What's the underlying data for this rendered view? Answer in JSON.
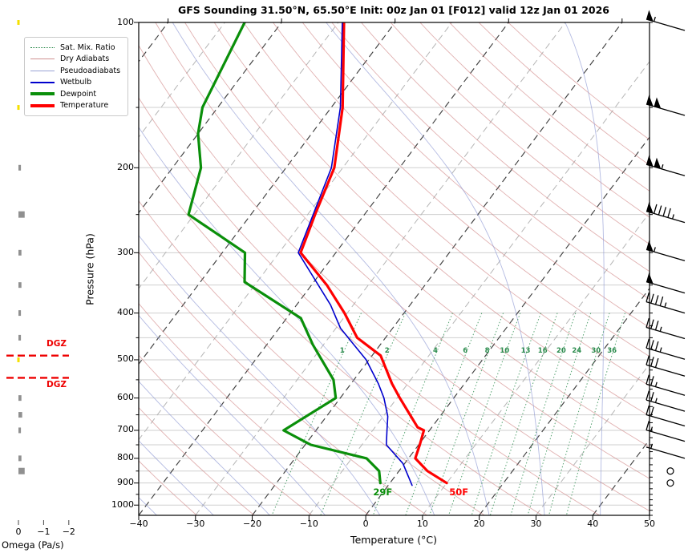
{
  "title": "GFS Sounding 31.50°N, 65.50°E Init: 00z Jan 01 [F012] valid 12z Jan 01 2026",
  "axes": {
    "pressure": {
      "label": "Pressure (hPa)",
      "ticks": [
        "100",
        "200",
        "300",
        "400",
        "500",
        "600",
        "700",
        "800",
        "900",
        "1000"
      ],
      "tick_values": [
        100,
        200,
        300,
        400,
        500,
        600,
        700,
        800,
        900,
        1000
      ]
    },
    "temperature": {
      "label": "Temperature (°C)",
      "ticks": [
        "−40",
        "−30",
        "−20",
        "−10",
        "0",
        "10",
        "20",
        "30",
        "40",
        "50"
      ],
      "tick_values": [
        -40,
        -30,
        -20,
        -10,
        0,
        10,
        20,
        30,
        40,
        50
      ]
    },
    "omega": {
      "label": "Omega (Pa/s)",
      "ticks": [
        "0",
        "−1",
        "−2"
      ],
      "tick_values": [
        0,
        -1,
        -2
      ]
    }
  },
  "legend": [
    {
      "label": "Sat. Mix. Ratio",
      "color": "#1e8240",
      "style": "dotted",
      "weight": 1.5
    },
    {
      "label": "Dry Adiabats",
      "color": "#cf8f8f",
      "style": "solid",
      "weight": 1.5
    },
    {
      "label": "Pseudoadiabats",
      "color": "#98a2d4",
      "style": "solid",
      "weight": 1.5
    },
    {
      "label": "Wetbulb",
      "color": "#0000cd",
      "style": "solid",
      "weight": 2
    },
    {
      "label": "Dewpoint",
      "color": "#0a8f0a",
      "style": "solid",
      "weight": 4
    },
    {
      "label": "Temperature",
      "color": "#ff0000",
      "style": "solid",
      "weight": 4
    }
  ],
  "colors": {
    "temperature": "#ff0000",
    "dewpoint": "#0a8f0a",
    "wetbulb": "#0000cd",
    "isotherm_major": "#404040",
    "isotherm_minor": "#b5b5b5",
    "dry_adiabat": "rgba(205,125,125,0.6)",
    "pseudoadiabat": "rgba(140,150,210,0.65)",
    "mixing_ratio": "#2c8c4e",
    "gridline": "#cfcfcf",
    "dgz": "#ee0000",
    "omega_bar": "#909090",
    "omega_highlight": "#f5e000",
    "barb": "#000000"
  },
  "chart_data": {
    "type": "skewt-sounding",
    "pressure_unit": "hPa",
    "temperature_unit": "°C",
    "pressure_range": [
      100,
      1050
    ],
    "temperature_range": [
      -40,
      50
    ],
    "series": [
      {
        "name": "Temperature",
        "points": [
          [
            100,
            -69
          ],
          [
            150,
            -58
          ],
          [
            200,
            -51.5
          ],
          [
            250,
            -48.7
          ],
          [
            300,
            -46.2
          ],
          [
            350,
            -37.3
          ],
          [
            400,
            -30.5
          ],
          [
            450,
            -25
          ],
          [
            490,
            -18.5
          ],
          [
            560,
            -12.8
          ],
          [
            600,
            -9.5
          ],
          [
            690,
            -2.5
          ],
          [
            700,
            -1
          ],
          [
            750,
            0.2
          ],
          [
            800,
            1.2
          ],
          [
            850,
            5
          ],
          [
            900,
            10
          ]
        ]
      },
      {
        "name": "Dewpoint",
        "points": [
          [
            100,
            -86.5
          ],
          [
            150,
            -82.7
          ],
          [
            170,
            -80
          ],
          [
            200,
            -75
          ],
          [
            250,
            -71
          ],
          [
            300,
            -56
          ],
          [
            345,
            -52.2
          ],
          [
            410,
            -37.5
          ],
          [
            465,
            -31.9
          ],
          [
            550,
            -23.6
          ],
          [
            600,
            -20.8
          ],
          [
            700,
            -25.7
          ],
          [
            750,
            -19
          ],
          [
            800,
            -7.4
          ],
          [
            850,
            -3.5
          ],
          [
            900,
            -1.7
          ]
        ]
      },
      {
        "name": "Wetbulb",
        "points": [
          [
            100,
            -69.3
          ],
          [
            150,
            -58.4
          ],
          [
            200,
            -52
          ],
          [
            300,
            -46.6
          ],
          [
            385,
            -34
          ],
          [
            430,
            -29.2
          ],
          [
            500,
            -20.5
          ],
          [
            560,
            -15.2
          ],
          [
            600,
            -12.3
          ],
          [
            655,
            -9.2
          ],
          [
            700,
            -7.5
          ],
          [
            750,
            -5.7
          ],
          [
            820,
            -0.3
          ],
          [
            910,
            4.2
          ]
        ]
      }
    ],
    "surface_labels": [
      {
        "text": "29F",
        "series": "Dewpoint",
        "color": "#0a8f0a"
      },
      {
        "text": "50F",
        "series": "Temperature",
        "color": "#ff0000"
      }
    ],
    "mixing_ratio_values": [
      1,
      2,
      4,
      6,
      8,
      10,
      13,
      16,
      20,
      24,
      30,
      36
    ],
    "mixing_ratio_label_pressure": 489,
    "isotherm_step_c": 10,
    "isotherm_major_step_c": 20,
    "dgz": {
      "label": "DGZ",
      "levels_hPa": [
        490,
        545
      ]
    },
    "wind_barbs": [
      {
        "p": 100,
        "kt": 55
      },
      {
        "p": 150,
        "kt": 100
      },
      {
        "p": 200,
        "kt": 105
      },
      {
        "p": 250,
        "kt": 95
      },
      {
        "p": 300,
        "kt": 55
      },
      {
        "p": 350,
        "kt": 50
      },
      {
        "p": 385,
        "kt": 45
      },
      {
        "p": 435,
        "kt": 35
      },
      {
        "p": 480,
        "kt": 35
      },
      {
        "p": 520,
        "kt": 30
      },
      {
        "p": 570,
        "kt": 25
      },
      {
        "p": 615,
        "kt": 25
      },
      {
        "p": 660,
        "kt": 20
      },
      {
        "p": 710,
        "kt": 15
      },
      {
        "p": 770,
        "kt": 5
      },
      {
        "p": 850,
        "kt": 0
      },
      {
        "p": 900,
        "kt": 0
      }
    ],
    "omega_bars": [
      {
        "p": 200,
        "value": -0.1
      },
      {
        "p": 250,
        "value": -0.25
      },
      {
        "p": 300,
        "value": -0.12
      },
      {
        "p": 350,
        "value": -0.12
      },
      {
        "p": 400,
        "value": -0.1
      },
      {
        "p": 450,
        "value": -0.1
      },
      {
        "p": 600,
        "value": -0.12
      },
      {
        "p": 650,
        "value": -0.15
      },
      {
        "p": 700,
        "value": -0.1
      },
      {
        "p": 800,
        "value": -0.12
      },
      {
        "p": 850,
        "value": -0.25
      }
    ],
    "omega_highlights_hPa": [
      100,
      150,
      500
    ]
  }
}
